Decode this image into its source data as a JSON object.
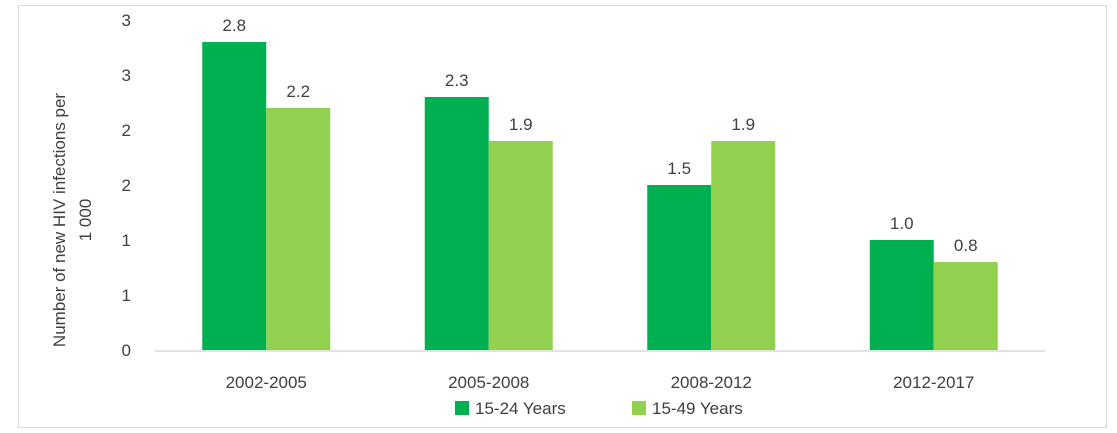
{
  "chart_data": {
    "type": "bar",
    "title": "",
    "xlabel": "",
    "ylabel": "Number of new HIV infections per 1 000",
    "categories": [
      "2002-2005",
      "2005-2008",
      "2008-2012",
      "2012-2017"
    ],
    "series": [
      {
        "name": "15-24 Years",
        "values": [
          2.8,
          2.3,
          1.5,
          1.0
        ],
        "labels": [
          "2.8",
          "2.3",
          "1.5",
          "1.0"
        ],
        "color": "#00b050"
      },
      {
        "name": "15-49 Years",
        "values": [
          2.2,
          1.9,
          1.9,
          0.8
        ],
        "labels": [
          "2.2",
          "1.9",
          "1.9",
          "0.8"
        ],
        "color": "#92d050"
      }
    ],
    "ylim": [
      0,
      3
    ],
    "yticks": [
      0,
      0.5,
      1,
      1.5,
      2,
      2.5,
      3
    ],
    "ytick_labels": [
      "0",
      "1",
      "1",
      "2",
      "2",
      "3",
      "3"
    ],
    "grid": false,
    "legend_position": "bottom"
  }
}
